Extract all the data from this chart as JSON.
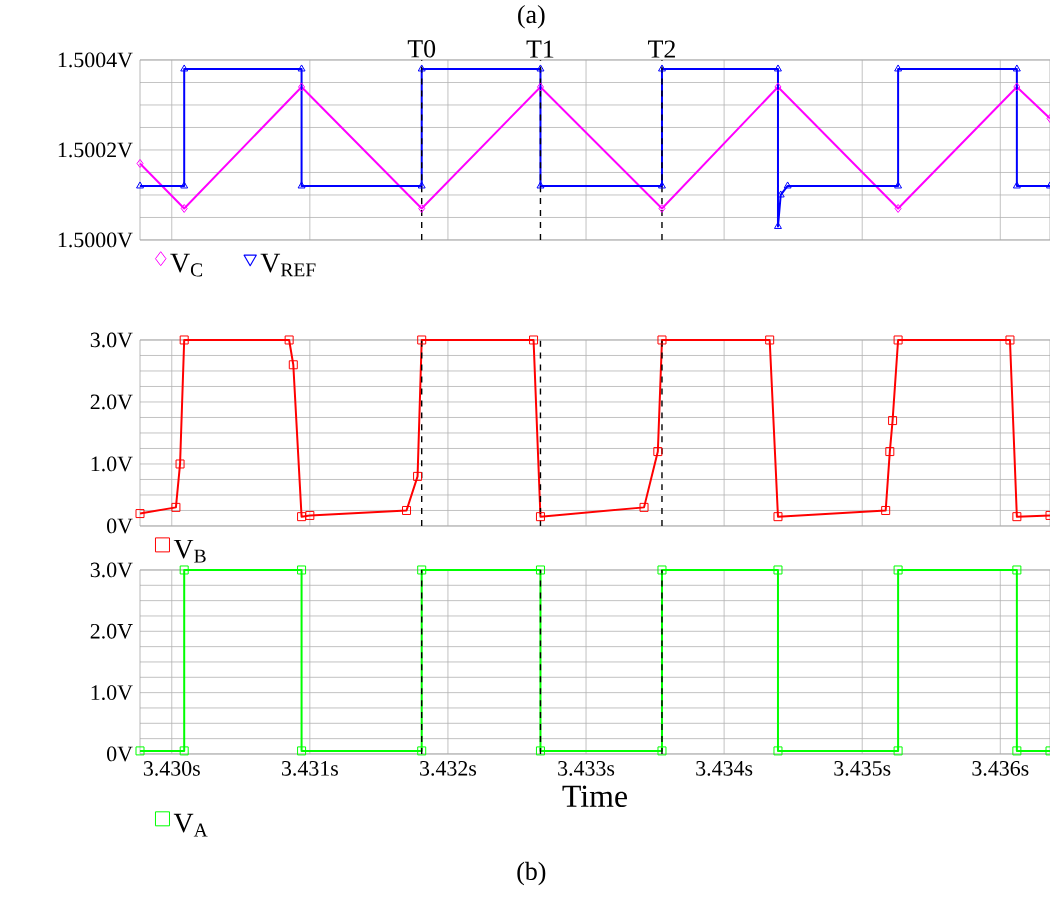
{
  "chart_data": [
    {
      "type": "line",
      "annotations": [
        "(a)"
      ],
      "series": [
        {
          "name": "V$_{C}$",
          "color": "#ff00ff",
          "marker": "diamond",
          "x": [
            3.42977,
            3.43009,
            3.43094,
            3.43181,
            3.43267,
            3.43355,
            3.43439,
            3.43526,
            3.43612,
            3.43636
          ],
          "values": [
            1.50017,
            1.50007,
            1.50034,
            1.50007,
            1.50034,
            1.50007,
            1.50034,
            1.50007,
            1.50034,
            1.50027
          ]
        },
        {
          "name": "V$_{REF}$",
          "color": "#0000ff",
          "marker": "triangle",
          "x": [
            3.42977,
            3.43009,
            3.43009,
            3.43094,
            3.43094,
            3.43181,
            3.43181,
            3.43267,
            3.43267,
            3.43355,
            3.43355,
            3.43439,
            3.43439,
            3.43441,
            3.43446,
            3.43526,
            3.43526,
            3.43612,
            3.43612,
            3.43636
          ],
          "values": [
            1.50012,
            1.50012,
            1.50038,
            1.50038,
            1.50012,
            1.50012,
            1.50038,
            1.50038,
            1.50012,
            1.50012,
            1.50038,
            1.50038,
            1.50003,
            1.5001,
            1.50012,
            1.50012,
            1.50038,
            1.50038,
            1.50012,
            1.50012
          ]
        }
      ],
      "xlim": [
        3.42977,
        3.43636
      ],
      "xticks": [
        {
          "value": 3.43,
          "label": null
        },
        {
          "value": 3.431,
          "label": null
        },
        {
          "value": 3.432,
          "label": null
        },
        {
          "value": 3.433,
          "label": null
        },
        {
          "value": 3.434,
          "label": null
        },
        {
          "value": 3.435,
          "label": null
        },
        {
          "value": 3.436,
          "label": null
        }
      ],
      "ylim": [
        1.5,
        1.5004
      ],
      "yticks": [
        {
          "value": 1.5,
          "label": "1.5000V"
        },
        {
          "value": 1.5002,
          "label": "1.5002V"
        },
        {
          "value": 1.5004,
          "label": "1.5004V"
        }
      ],
      "tick_labels": "y",
      "grid": true,
      "legend": "bottom left",
      "ref_lines": [
        {
          "axis": "x",
          "value": 3.43181,
          "label": "T0",
          "line_style": "dashed",
          "color": "#000000"
        },
        {
          "axis": "x",
          "value": 3.43267,
          "label": "T1",
          "line_style": "dashed",
          "color": "#000000"
        },
        {
          "axis": "x",
          "value": 3.43355,
          "label": "T2",
          "line_style": "dashed",
          "color": "#000000"
        }
      ]
    },
    {
      "type": "line",
      "series": [
        {
          "name": "V$_{B}$",
          "color": "#ff0000",
          "marker": "square",
          "x": [
            3.42977,
            3.43003,
            3.43006,
            3.43009,
            3.43085,
            3.43088,
            3.43094,
            3.431,
            3.4317,
            3.43178,
            3.43181,
            3.43262,
            3.43267,
            3.43342,
            3.43352,
            3.43355,
            3.43433,
            3.43439,
            3.43517,
            3.4352,
            3.43522,
            3.43526,
            3.43607,
            3.43612,
            3.43636
          ],
          "values": [
            0.2,
            0.3,
            1.0,
            3.0,
            3.0,
            2.6,
            0.15,
            0.17,
            0.25,
            0.8,
            3.0,
            3.0,
            0.15,
            0.3,
            1.2,
            3.0,
            3.0,
            0.15,
            0.25,
            1.2,
            1.7,
            3.0,
            3.0,
            0.15,
            0.17
          ]
        }
      ],
      "xlim": [
        3.42977,
        3.43636
      ],
      "xticks": [
        {
          "value": 3.43,
          "label": null
        },
        {
          "value": 3.431,
          "label": null
        },
        {
          "value": 3.432,
          "label": null
        },
        {
          "value": 3.433,
          "label": null
        },
        {
          "value": 3.434,
          "label": null
        },
        {
          "value": 3.435,
          "label": null
        },
        {
          "value": 3.436,
          "label": null
        }
      ],
      "ylim": [
        0,
        3
      ],
      "yticks": [
        {
          "value": 0,
          "label": "0V"
        },
        {
          "value": 1,
          "label": "1.0V"
        },
        {
          "value": 2,
          "label": "2.0V"
        },
        {
          "value": 3,
          "label": "3.0V"
        }
      ],
      "tick_labels": "y",
      "grid": true,
      "legend": "bottom left",
      "ref_lines": [
        {
          "axis": "x",
          "value": 3.43181,
          "line_style": "dashed",
          "color": "#000000"
        },
        {
          "axis": "x",
          "value": 3.43267,
          "line_style": "dashed",
          "color": "#000000"
        },
        {
          "axis": "x",
          "value": 3.43355,
          "line_style": "dashed",
          "color": "#000000"
        }
      ]
    },
    {
      "type": "line",
      "xlabel": "Time",
      "annotations": [
        "(b)"
      ],
      "series": [
        {
          "name": "V$_{A}$",
          "color": "#00ff00",
          "marker": "square",
          "x": [
            3.42977,
            3.43009,
            3.43009,
            3.43094,
            3.43094,
            3.43181,
            3.43181,
            3.43267,
            3.43267,
            3.43355,
            3.43355,
            3.43439,
            3.43439,
            3.43526,
            3.43526,
            3.43612,
            3.43612,
            3.43636
          ],
          "values": [
            0.05,
            0.05,
            3.0,
            3.0,
            0.05,
            0.05,
            3.0,
            3.0,
            0.05,
            0.05,
            3.0,
            3.0,
            0.05,
            0.05,
            3.0,
            3.0,
            0.05,
            0.05
          ]
        }
      ],
      "xlim": [
        3.42977,
        3.43636
      ],
      "xticks": [
        {
          "value": 3.43,
          "label": "3.430s"
        },
        {
          "value": 3.431,
          "label": "3.431s"
        },
        {
          "value": 3.432,
          "label": "3.432s"
        },
        {
          "value": 3.433,
          "label": "3.433s"
        },
        {
          "value": 3.434,
          "label": "3.434s"
        },
        {
          "value": 3.435,
          "label": "3.435s"
        },
        {
          "value": 3.436,
          "label": "3.436s"
        }
      ],
      "ylim": [
        0,
        3
      ],
      "yticks": [
        {
          "value": 0,
          "label": "0V"
        },
        {
          "value": 1,
          "label": "1.0V"
        },
        {
          "value": 2,
          "label": "2.0V"
        },
        {
          "value": 3,
          "label": "3.0V"
        }
      ],
      "grid": true,
      "legend": "bottom left",
      "ref_lines": [
        {
          "axis": "x",
          "value": 3.43181,
          "line_style": "dashed",
          "color": "#000000"
        },
        {
          "axis": "x",
          "value": 3.43267,
          "line_style": "dashed",
          "color": "#000000"
        },
        {
          "axis": "x",
          "value": 3.43355,
          "line_style": "dashed",
          "color": "#000000"
        }
      ]
    }
  ]
}
